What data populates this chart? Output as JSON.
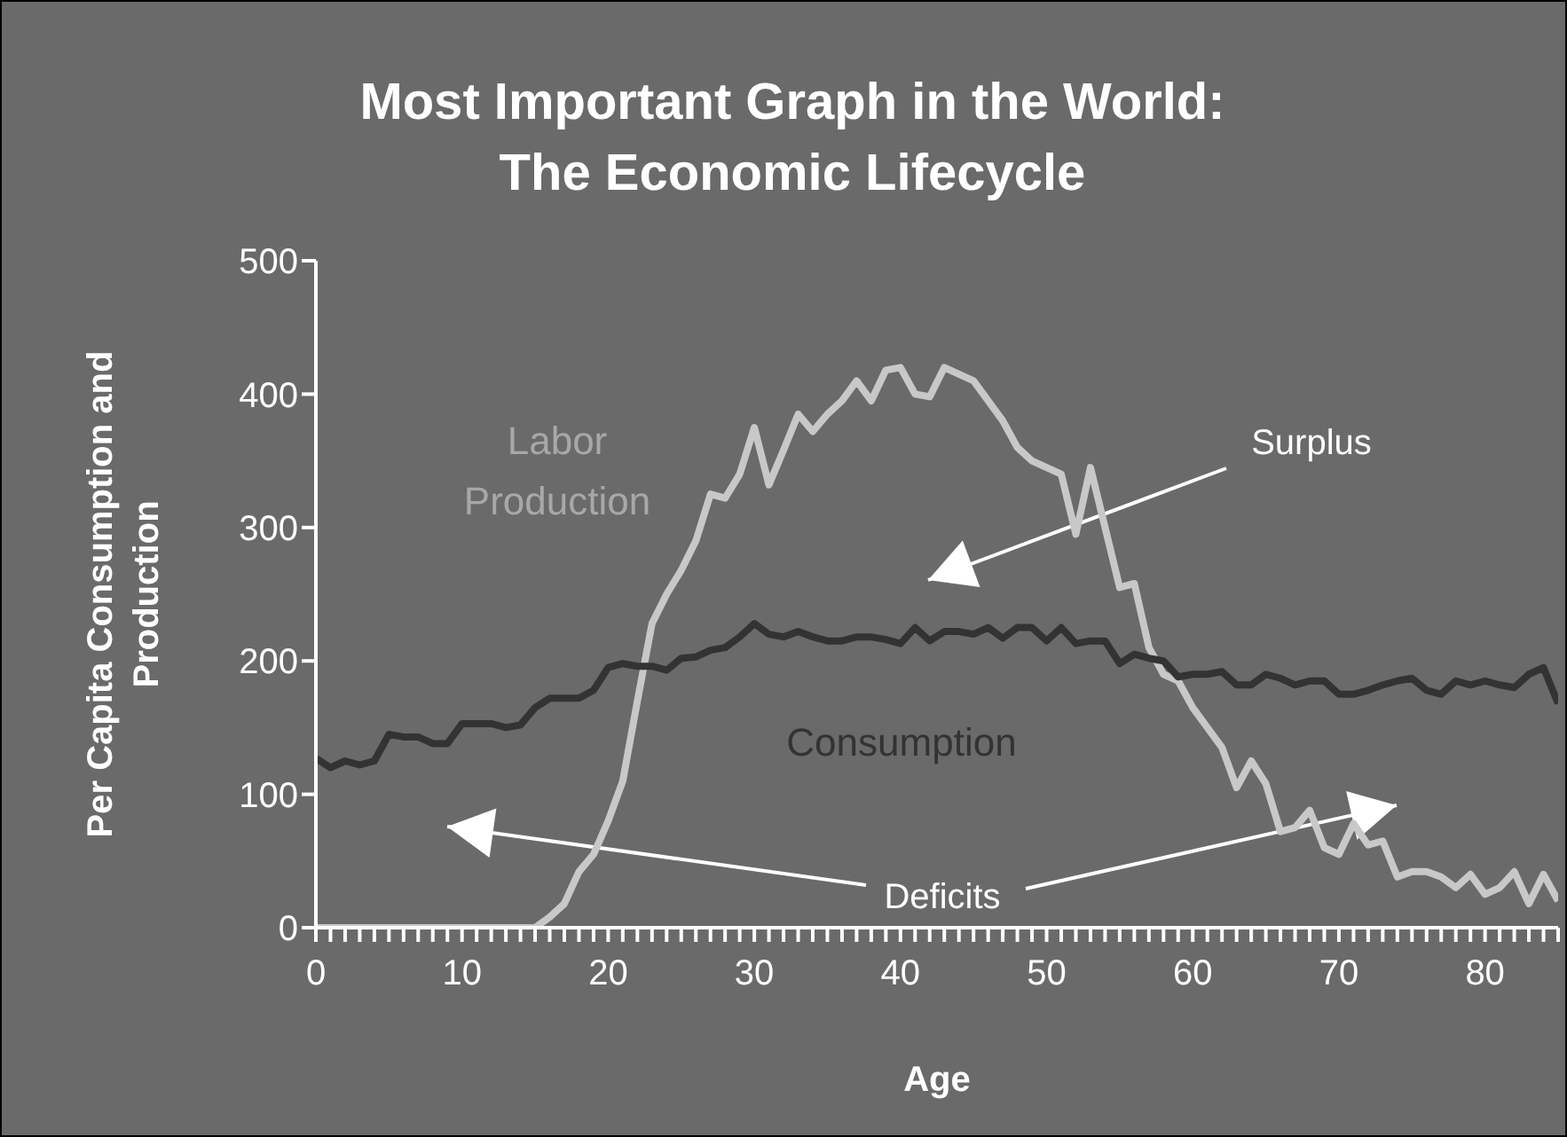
{
  "chart_data": {
    "type": "line",
    "title": "Most Important Graph in the World: The Economic Lifecycle",
    "xlabel": "Age",
    "ylabel": "Per Capita Consumption and Production",
    "x": [
      0,
      1,
      2,
      3,
      4,
      5,
      6,
      7,
      8,
      9,
      10,
      11,
      12,
      13,
      14,
      15,
      16,
      17,
      18,
      19,
      20,
      21,
      22,
      23,
      24,
      25,
      26,
      27,
      28,
      29,
      30,
      31,
      32,
      33,
      34,
      35,
      36,
      37,
      38,
      39,
      40,
      41,
      42,
      43,
      44,
      45,
      46,
      47,
      48,
      49,
      50,
      51,
      52,
      53,
      54,
      55,
      56,
      57,
      58,
      59,
      60,
      61,
      62,
      63,
      64,
      65,
      66,
      67,
      68,
      69,
      70,
      71,
      72,
      73,
      74,
      75,
      76,
      77,
      78,
      79,
      80,
      81,
      82,
      83,
      84,
      85
    ],
    "series": [
      {
        "name": "Labor Production",
        "color": "#c8c8c8",
        "values": [
          0,
          0,
          0,
          0,
          0,
          0,
          0,
          0,
          0,
          0,
          0,
          0,
          0,
          0,
          0,
          0,
          8,
          18,
          42,
          55,
          80,
          110,
          170,
          228,
          250,
          268,
          290,
          325,
          322,
          340,
          375,
          332,
          358,
          385,
          372,
          385,
          395,
          410,
          395,
          418,
          420,
          400,
          398,
          420,
          415,
          410,
          395,
          380,
          360,
          350,
          345,
          340,
          295,
          345,
          300,
          255,
          258,
          210,
          190,
          185,
          165,
          150,
          135,
          105,
          125,
          108,
          72,
          75,
          88,
          60,
          55,
          78,
          62,
          65,
          38,
          42,
          42,
          38,
          30,
          40,
          25,
          30,
          42,
          18,
          40,
          20
        ]
      },
      {
        "name": "Consumption",
        "color": "#333333",
        "values": [
          127,
          120,
          125,
          122,
          125,
          145,
          143,
          143,
          138,
          138,
          153,
          153,
          153,
          150,
          152,
          165,
          172,
          172,
          172,
          178,
          195,
          198,
          196,
          196,
          193,
          202,
          203,
          208,
          210,
          218,
          228,
          220,
          218,
          222,
          218,
          215,
          215,
          218,
          218,
          216,
          213,
          225,
          215,
          222,
          222,
          220,
          225,
          217,
          225,
          225,
          215,
          225,
          213,
          215,
          215,
          198,
          205,
          202,
          200,
          188,
          190,
          190,
          192,
          182,
          182,
          190,
          187,
          182,
          185,
          185,
          175,
          175,
          178,
          182,
          185,
          187,
          178,
          175,
          185,
          182,
          185,
          182,
          180,
          190,
          195,
          168
        ]
      }
    ],
    "annotations": [
      "Surplus",
      "Deficits"
    ],
    "xlim": [
      0,
      85
    ],
    "xticks": [
      0,
      {
        "value": 1,
        "label": null
      },
      {
        "value": 2,
        "label": null
      },
      {
        "value": 3,
        "label": null
      },
      {
        "value": 4,
        "label": null
      },
      {
        "value": 5,
        "label": null
      },
      {
        "value": 6,
        "label": null
      },
      {
        "value": 7,
        "label": null
      },
      {
        "value": 8,
        "label": null
      },
      {
        "value": 9,
        "label": null
      },
      10,
      {
        "value": 11,
        "label": null
      },
      {
        "value": 12,
        "label": null
      },
      {
        "value": 13,
        "label": null
      },
      {
        "value": 14,
        "label": null
      },
      {
        "value": 15,
        "label": null
      },
      {
        "value": 16,
        "label": null
      },
      {
        "value": 17,
        "label": null
      },
      {
        "value": 18,
        "label": null
      },
      {
        "value": 19,
        "label": null
      },
      20,
      {
        "value": 21,
        "label": null
      },
      {
        "value": 22,
        "label": null
      },
      {
        "value": 23,
        "label": null
      },
      {
        "value": 24,
        "label": null
      },
      {
        "value": 25,
        "label": null
      },
      {
        "value": 26,
        "label": null
      },
      {
        "value": 27,
        "label": null
      },
      {
        "value": 28,
        "label": null
      },
      {
        "value": 29,
        "label": null
      },
      30,
      {
        "value": 31,
        "label": null
      },
      {
        "value": 32,
        "label": null
      },
      {
        "value": 33,
        "label": null
      },
      {
        "value": 34,
        "label": null
      },
      {
        "value": 35,
        "label": null
      },
      {
        "value": 36,
        "label": null
      },
      {
        "value": 37,
        "label": null
      },
      {
        "value": 38,
        "label": null
      },
      {
        "value": 39,
        "label": null
      },
      40,
      {
        "value": 41,
        "label": null
      },
      {
        "value": 42,
        "label": null
      },
      {
        "value": 43,
        "label": null
      },
      {
        "value": 44,
        "label": null
      },
      {
        "value": 45,
        "label": null
      },
      {
        "value": 46,
        "label": null
      },
      {
        "value": 47,
        "label": null
      },
      {
        "value": 48,
        "label": null
      },
      {
        "value": 49,
        "label": null
      },
      50,
      {
        "value": 51,
        "label": null
      },
      {
        "value": 52,
        "label": null
      },
      {
        "value": 53,
        "label": null
      },
      {
        "value": 54,
        "label": null
      },
      {
        "value": 55,
        "label": null
      },
      {
        "value": 56,
        "label": null
      },
      {
        "value": 57,
        "label": null
      },
      {
        "value": 58,
        "label": null
      },
      {
        "value": 59,
        "label": null
      },
      60,
      {
        "value": 61,
        "label": null
      },
      {
        "value": 62,
        "label": null
      },
      {
        "value": 63,
        "label": null
      },
      {
        "value": 64,
        "label": null
      },
      {
        "value": 65,
        "label": null
      },
      {
        "value": 66,
        "label": null
      },
      {
        "value": 67,
        "label": null
      },
      {
        "value": 68,
        "label": null
      },
      {
        "value": 69,
        "label": null
      },
      70,
      {
        "value": 71,
        "label": null
      },
      {
        "value": 72,
        "label": null
      },
      {
        "value": 73,
        "label": null
      },
      {
        "value": 74,
        "label": null
      },
      {
        "value": 75,
        "label": null
      },
      {
        "value": 76,
        "label": null
      },
      {
        "value": 77,
        "label": null
      },
      {
        "value": 78,
        "label": null
      },
      {
        "value": 79,
        "label": null
      },
      80,
      {
        "value": 81,
        "label": null
      },
      {
        "value": 82,
        "label": null
      },
      {
        "value": 83,
        "label": null
      },
      {
        "value": 84,
        "label": null
      },
      {
        "value": 85,
        "label": null
      }
    ],
    "ylim": [
      0,
      500
    ],
    "yticks": [
      0,
      100,
      200,
      300,
      400,
      500
    ],
    "grid": false,
    "legend": false,
    "marker": "none",
    "line_style": "solid"
  }
}
